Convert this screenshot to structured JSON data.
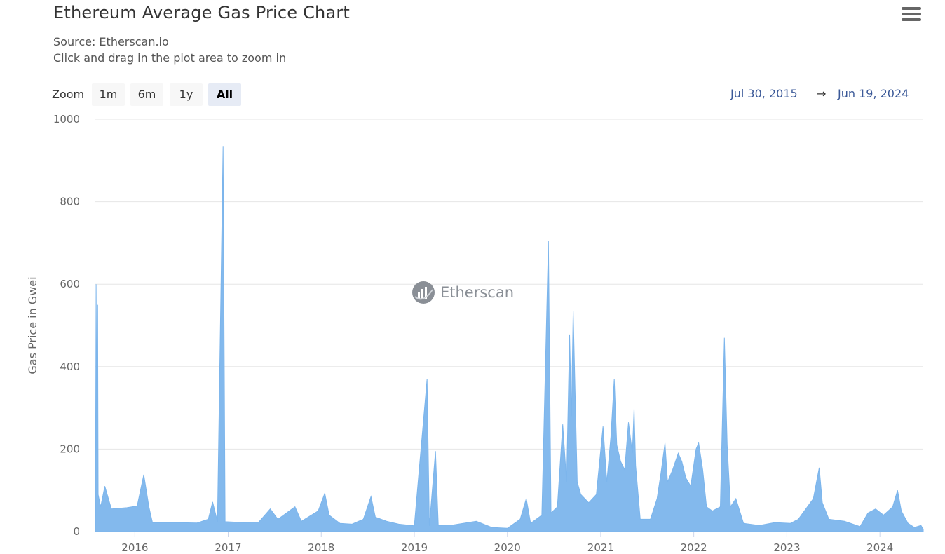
{
  "header": {
    "title": "Ethereum Average Gas Price Chart",
    "source": "Source: Etherscan.io",
    "hint": "Click and drag in the plot area to zoom in"
  },
  "toolbar": {
    "zoom_label": "Zoom",
    "buttons": [
      "1m",
      "6m",
      "1y",
      "All"
    ],
    "selected": "All",
    "range_from": "Jul 30, 2015",
    "range_arrow": "→",
    "range_to": "Jun 19, 2024",
    "menu_icon": "hamburger-menu-icon"
  },
  "watermark": {
    "text": "Etherscan",
    "icon": "etherscan-logo-icon"
  },
  "colors": {
    "series": "#7cb5ec",
    "grid": "#e6e6e6",
    "axis": "#ccd6eb",
    "text": "#666666"
  },
  "chart_data": {
    "type": "area",
    "title": "Ethereum Average Gas Price Chart",
    "ylabel": "Gas Price in Gwei",
    "xlabel": "",
    "ylim": [
      0,
      1000
    ],
    "yticks": [
      0,
      200,
      400,
      600,
      800,
      1000
    ],
    "xticks": [
      "2016",
      "2017",
      "2018",
      "2019",
      "2020",
      "2021",
      "2022",
      "2023",
      "2024"
    ],
    "xrange": [
      "2015-07-30",
      "2024-06-19"
    ],
    "grid": true,
    "legend": "none",
    "series": [
      {
        "name": "",
        "points": [
          [
            "2015-07-30",
            0
          ],
          [
            "2015-08-02",
            600
          ],
          [
            "2015-08-05",
            190
          ],
          [
            "2015-08-08",
            550
          ],
          [
            "2015-08-10",
            90
          ],
          [
            "2015-08-20",
            60
          ],
          [
            "2015-09-05",
            110
          ],
          [
            "2015-10-01",
            55
          ],
          [
            "2015-12-01",
            58
          ],
          [
            "2016-01-10",
            62
          ],
          [
            "2016-02-05",
            138
          ],
          [
            "2016-02-25",
            60
          ],
          [
            "2016-03-10",
            22
          ],
          [
            "2016-06-01",
            22
          ],
          [
            "2016-09-01",
            21
          ],
          [
            "2016-10-15",
            30
          ],
          [
            "2016-11-01",
            72
          ],
          [
            "2016-11-20",
            24
          ],
          [
            "2016-12-12",
            935
          ],
          [
            "2016-12-20",
            24
          ],
          [
            "2017-03-01",
            22
          ],
          [
            "2017-05-01",
            23
          ],
          [
            "2017-06-15",
            55
          ],
          [
            "2017-07-15",
            30
          ],
          [
            "2017-09-20",
            60
          ],
          [
            "2017-10-15",
            25
          ],
          [
            "2017-12-20",
            50
          ],
          [
            "2018-01-15",
            93
          ],
          [
            "2018-02-01",
            40
          ],
          [
            "2018-03-15",
            20
          ],
          [
            "2018-05-01",
            18
          ],
          [
            "2018-06-15",
            30
          ],
          [
            "2018-07-15",
            85
          ],
          [
            "2018-08-01",
            35
          ],
          [
            "2018-09-15",
            25
          ],
          [
            "2018-11-01",
            18
          ],
          [
            "2019-01-01",
            14
          ],
          [
            "2019-02-20",
            370
          ],
          [
            "2019-03-01",
            14
          ],
          [
            "2019-03-25",
            195
          ],
          [
            "2019-04-05",
            15
          ],
          [
            "2019-06-01",
            16
          ],
          [
            "2019-09-01",
            25
          ],
          [
            "2019-11-01",
            10
          ],
          [
            "2020-01-01",
            8
          ],
          [
            "2020-02-20",
            30
          ],
          [
            "2020-03-15",
            80
          ],
          [
            "2020-04-01",
            20
          ],
          [
            "2020-05-15",
            40
          ],
          [
            "2020-06-10",
            705
          ],
          [
            "2020-06-20",
            45
          ],
          [
            "2020-07-15",
            60
          ],
          [
            "2020-08-05",
            260
          ],
          [
            "2020-08-20",
            120
          ],
          [
            "2020-09-01",
            478
          ],
          [
            "2020-09-08",
            280
          ],
          [
            "2020-09-15",
            535
          ],
          [
            "2020-10-01",
            120
          ],
          [
            "2020-10-15",
            90
          ],
          [
            "2020-11-15",
            70
          ],
          [
            "2020-12-15",
            90
          ],
          [
            "2021-01-10",
            255
          ],
          [
            "2021-01-25",
            120
          ],
          [
            "2021-02-10",
            230
          ],
          [
            "2021-02-23",
            370
          ],
          [
            "2021-03-05",
            210
          ],
          [
            "2021-03-20",
            170
          ],
          [
            "2021-04-05",
            150
          ],
          [
            "2021-04-20",
            265
          ],
          [
            "2021-05-05",
            190
          ],
          [
            "2021-05-12",
            298
          ],
          [
            "2021-05-18",
            160
          ],
          [
            "2021-06-05",
            30
          ],
          [
            "2021-07-15",
            30
          ],
          [
            "2021-08-10",
            80
          ],
          [
            "2021-08-25",
            140
          ],
          [
            "2021-09-10",
            215
          ],
          [
            "2021-09-20",
            120
          ],
          [
            "2021-10-10",
            150
          ],
          [
            "2021-11-01",
            190
          ],
          [
            "2021-11-15",
            170
          ],
          [
            "2021-12-01",
            130
          ],
          [
            "2021-12-20",
            110
          ],
          [
            "2022-01-10",
            200
          ],
          [
            "2022-01-20",
            215
          ],
          [
            "2022-02-05",
            150
          ],
          [
            "2022-02-20",
            60
          ],
          [
            "2022-03-15",
            50
          ],
          [
            "2022-04-15",
            60
          ],
          [
            "2022-05-01",
            470
          ],
          [
            "2022-05-12",
            210
          ],
          [
            "2022-05-25",
            60
          ],
          [
            "2022-06-15",
            80
          ],
          [
            "2022-07-15",
            20
          ],
          [
            "2022-09-15",
            15
          ],
          [
            "2022-11-15",
            22
          ],
          [
            "2023-01-15",
            20
          ],
          [
            "2023-02-15",
            30
          ],
          [
            "2023-04-15",
            80
          ],
          [
            "2023-05-08",
            155
          ],
          [
            "2023-05-20",
            70
          ],
          [
            "2023-06-15",
            30
          ],
          [
            "2023-08-15",
            25
          ],
          [
            "2023-10-15",
            12
          ],
          [
            "2023-11-15",
            45
          ],
          [
            "2023-12-15",
            55
          ],
          [
            "2024-01-15",
            40
          ],
          [
            "2024-02-20",
            60
          ],
          [
            "2024-03-10",
            100
          ],
          [
            "2024-03-25",
            50
          ],
          [
            "2024-04-20",
            20
          ],
          [
            "2024-05-15",
            10
          ],
          [
            "2024-06-10",
            15
          ],
          [
            "2024-06-19",
            6
          ]
        ]
      }
    ]
  }
}
